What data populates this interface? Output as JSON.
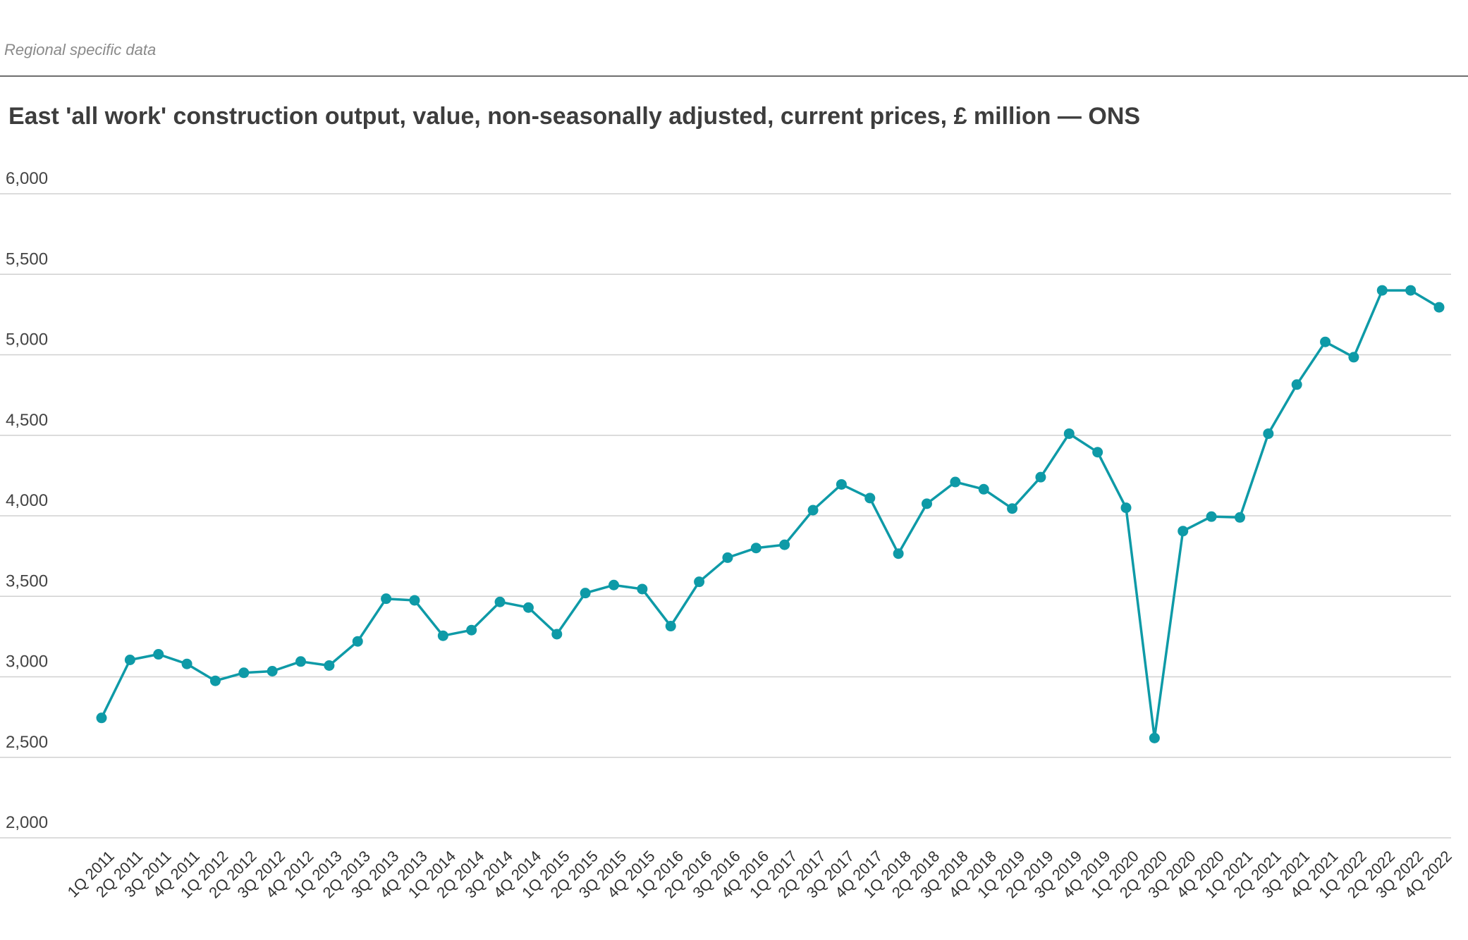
{
  "header": {
    "caption": "Regional specific data"
  },
  "colors": {
    "series": "#0e9aa7",
    "gridline": "#d0d0d0",
    "header_rule": "#6e6e6e"
  },
  "chart_data": {
    "type": "line",
    "title": "East 'all work' construction output, value, non-seasonally adjusted, current prices, £ million — ONS",
    "xlabel": "",
    "ylabel": "",
    "ylim": [
      2000,
      6000
    ],
    "yticks": [
      "2,000",
      "2,500",
      "3,000",
      "3,500",
      "4,000",
      "4,500",
      "5,000",
      "5,500",
      "6,000"
    ],
    "ytick_values": [
      2000,
      2500,
      3000,
      3500,
      4000,
      4500,
      5000,
      5500,
      6000
    ],
    "grid": true,
    "legend": "none",
    "markers": true,
    "categories": [
      "1Q 2011",
      "2Q 2011",
      "3Q 2011",
      "4Q 2011",
      "1Q 2012",
      "2Q 2012",
      "3Q 2012",
      "4Q 2012",
      "1Q 2013",
      "2Q 2013",
      "3Q 2013",
      "4Q 2013",
      "1Q 2014",
      "2Q 2014",
      "3Q 2014",
      "4Q 2014",
      "1Q 2015",
      "2Q 2015",
      "3Q 2015",
      "4Q 2015",
      "1Q 2016",
      "2Q 2016",
      "3Q 2016",
      "4Q 2016",
      "1Q 2017",
      "2Q 2017",
      "3Q 2017",
      "4Q 2017",
      "1Q 2018",
      "2Q 2018",
      "3Q 2018",
      "4Q 2018",
      "1Q 2019",
      "2Q 2019",
      "3Q 2019",
      "4Q 2019",
      "1Q 2020",
      "2Q 2020",
      "3Q 2020",
      "4Q 2020",
      "1Q 2021",
      "2Q 2021",
      "3Q 2021",
      "4Q 2021",
      "1Q 2022",
      "2Q 2022",
      "3Q 2022",
      "4Q 2022"
    ],
    "series": [
      {
        "values": [
          2745,
          3105,
          3140,
          3080,
          2975,
          3025,
          3035,
          3095,
          3070,
          3220,
          3485,
          3475,
          3255,
          3290,
          3465,
          3430,
          3265,
          3520,
          3570,
          3545,
          3315,
          3590,
          3740,
          3800,
          3820,
          4035,
          4195,
          4110,
          3765,
          4075,
          4210,
          4165,
          4045,
          4240,
          4510,
          4395,
          4050,
          2620,
          3905,
          3995,
          3990,
          4510,
          4815,
          5080,
          4985,
          5400,
          5400,
          5295
        ]
      }
    ]
  }
}
